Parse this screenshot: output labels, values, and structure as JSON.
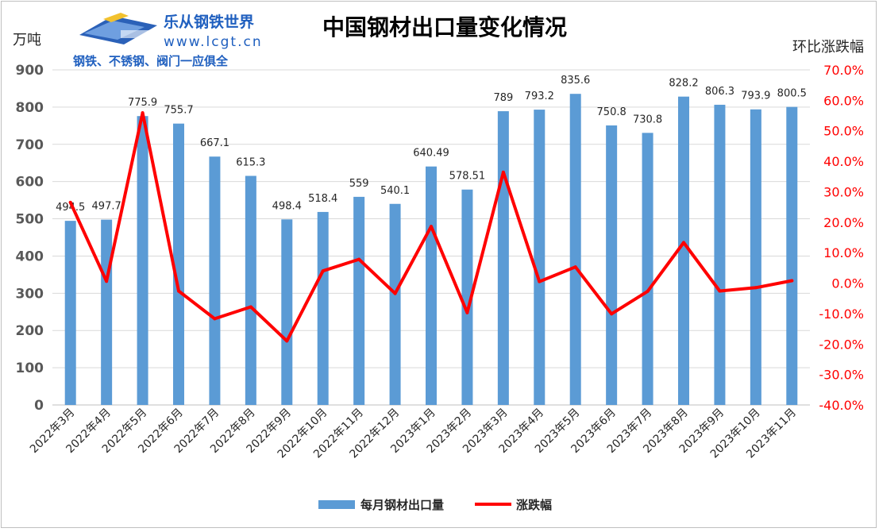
{
  "logo": {
    "name": "乐从钢铁世界",
    "url": "www.lcgt.cn",
    "slogan": "钢铁、不锈钢、阀门一应俱全"
  },
  "chart_data": {
    "type": "bar",
    "title": "中国钢材出口量变化情况",
    "ylabel": "万吨",
    "y2label": "环比涨跌幅",
    "ylim": [
      0,
      900
    ],
    "yticks": [
      "900",
      "800",
      "700",
      "600",
      "500",
      "400",
      "300",
      "200",
      "100",
      "0"
    ],
    "y2lim": [
      -40,
      70
    ],
    "y2ticks": [
      "70.0%",
      "60.0%",
      "50.0%",
      "40.0%",
      "30.0%",
      "20.0%",
      "10.0%",
      "0.0%",
      "-10.0%",
      "-20.0%",
      "-30.0%",
      "-40.0%"
    ],
    "categories": [
      "2022年3月",
      "2022年4月",
      "2022年5月",
      "2022年6月",
      "2022年7月",
      "2022年8月",
      "2022年9月",
      "2022年10月",
      "2022年11月",
      "2022年12月",
      "2023年1月",
      "2023年2月",
      "2023年3月",
      "2023年4月",
      "2023年5月",
      "2023年6月",
      "2023年7月",
      "2023年8月",
      "2023年9月",
      "2023年10月",
      "2023年11月"
    ],
    "series": [
      {
        "name": "每月钢材出口量",
        "type": "bar",
        "axis": "left",
        "color": "#5b9bd5",
        "values": [
          494.5,
          497.7,
          775.9,
          755.7,
          667.1,
          615.3,
          498.4,
          518.4,
          559,
          540.1,
          640.49,
          578.51,
          789,
          793.2,
          835.6,
          750.8,
          730.8,
          828.2,
          806.3,
          793.9,
          800.5
        ],
        "labels": [
          "494.5",
          "497.7",
          "775.9",
          "755.7",
          "667.1",
          "615.3",
          "498.4",
          "518.4",
          "559",
          "540.1",
          "640.49",
          "578.51",
          "789",
          "793.2",
          "835.6",
          "750.8",
          "730.8",
          "828.2",
          "806.3",
          "793.9",
          "800.5"
        ]
      },
      {
        "name": "涨跌幅",
        "type": "line",
        "axis": "right",
        "color": "#ff0000",
        "values": [
          26.5,
          0.6,
          55.9,
          -2.6,
          -11.7,
          -7.8,
          -19.0,
          4.0,
          7.8,
          -3.4,
          18.6,
          -9.7,
          36.4,
          0.5,
          5.3,
          -10.1,
          -2.7,
          13.3,
          -2.6,
          -1.5,
          0.8
        ]
      }
    ],
    "legend": "bottom",
    "grid": true
  }
}
